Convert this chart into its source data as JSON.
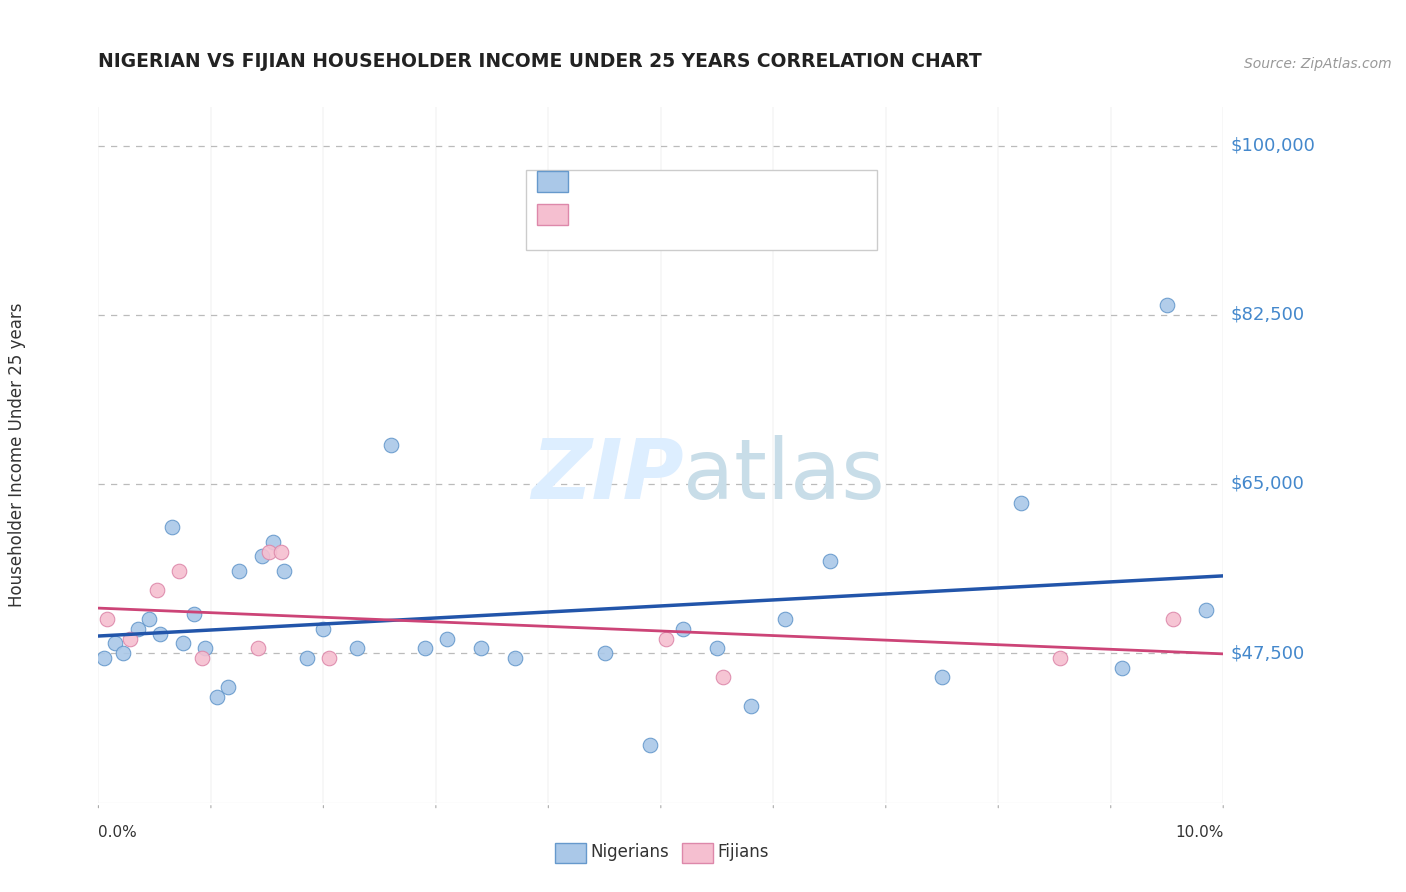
{
  "title": "NIGERIAN VS FIJIAN HOUSEHOLDER INCOME UNDER 25 YEARS CORRELATION CHART",
  "source": "Source: ZipAtlas.com",
  "ylabel": "Householder Income Under 25 years",
  "legend_bottom": [
    "Nigerians",
    "Fijians"
  ],
  "ytick_labels": [
    "$100,000",
    "$82,500",
    "$65,000",
    "$47,500"
  ],
  "ytick_values": [
    100000,
    82500,
    65000,
    47500
  ],
  "ymin": 32000,
  "ymax": 104000,
  "xmin": 0.0,
  "xmax": 10.0,
  "nigerian_color": "#aac8e8",
  "nigerian_edge_color": "#6699cc",
  "nigerian_line_color": "#2255aa",
  "fijian_color": "#f5bfd0",
  "fijian_edge_color": "#dd88aa",
  "fijian_line_color": "#cc4477",
  "background_color": "#ffffff",
  "plot_bg_color": "#ffffff",
  "grid_color": "#bbbbbb",
  "title_color": "#222222",
  "axis_label_color": "#4488cc",
  "source_color": "#999999",
  "watermark_color": "#ddeeff",
  "nigerian_x": [
    0.05,
    0.15,
    0.22,
    0.35,
    0.45,
    0.55,
    0.65,
    0.75,
    0.85,
    0.95,
    1.05,
    1.15,
    1.25,
    1.45,
    1.55,
    1.65,
    1.85,
    2.0,
    2.3,
    2.6,
    2.9,
    3.1,
    3.4,
    3.7,
    4.5,
    4.9,
    5.2,
    5.5,
    5.8,
    6.1,
    6.5,
    7.5,
    8.2,
    9.1,
    9.5,
    9.85
  ],
  "nigerian_y": [
    47000,
    48500,
    47500,
    50000,
    51000,
    49500,
    60500,
    48500,
    51500,
    48000,
    43000,
    44000,
    56000,
    57500,
    59000,
    56000,
    47000,
    50000,
    48000,
    69000,
    48000,
    49000,
    48000,
    47000,
    47500,
    38000,
    50000,
    48000,
    42000,
    51000,
    57000,
    45000,
    63000,
    46000,
    83500,
    52000
  ],
  "fijian_x": [
    0.08,
    0.28,
    0.52,
    0.72,
    0.92,
    1.42,
    1.52,
    1.62,
    2.05,
    5.05,
    5.55,
    8.55,
    9.55
  ],
  "fijian_y": [
    51000,
    49000,
    54000,
    56000,
    47000,
    48000,
    58000,
    58000,
    47000,
    49000,
    45000,
    47000,
    51000
  ],
  "nig_trend_slope": 400,
  "nig_trend_intercept": 48200,
  "fij_trend_slope": -500,
  "fij_trend_intercept": 51500
}
